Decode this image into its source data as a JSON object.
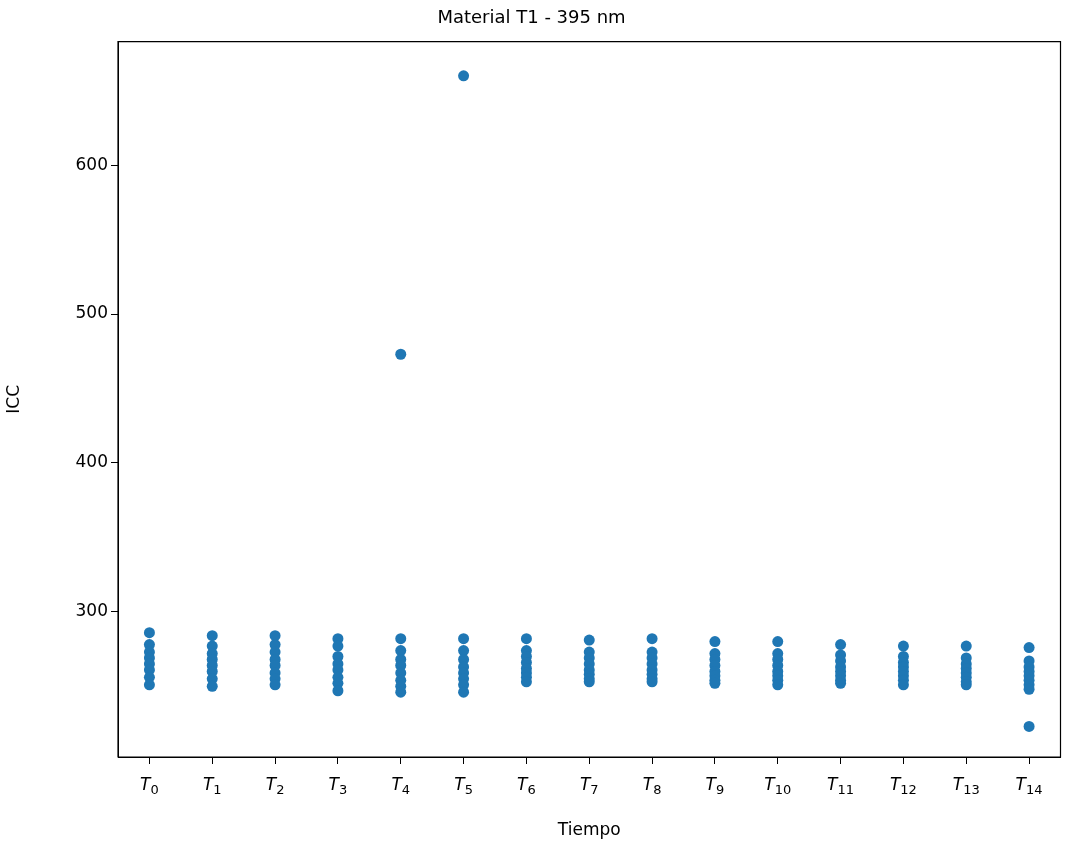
{
  "chart_data": {
    "type": "scatter",
    "title": "Material T1 - 395 nm",
    "xlabel": "Tiempo",
    "ylabel": "ICC",
    "categories": [
      "T$_{0}$",
      "T$_{1}$",
      "T$_{2}$",
      "T$_{3}$",
      "T$_{4}$",
      "T$_{5}$",
      "T$_{6}$",
      "T$_{7}$",
      "T$_{8}$",
      "T$_{9}$",
      "T$_{10}$",
      "T$_{11}$",
      "T$_{12}$",
      "T$_{13}$",
      "T$_{14}$"
    ],
    "series": [
      {
        "color": "#1f77b4",
        "x": [
          "T$_{0}$",
          "T$_{0}$",
          "T$_{0}$",
          "T$_{0}$",
          "T$_{0}$",
          "T$_{0}$",
          "T$_{0}$",
          "T$_{0}$",
          "T$_{1}$",
          "T$_{1}$",
          "T$_{1}$",
          "T$_{1}$",
          "T$_{1}$",
          "T$_{1}$",
          "T$_{1}$",
          "T$_{1}$",
          "T$_{2}$",
          "T$_{2}$",
          "T$_{2}$",
          "T$_{2}$",
          "T$_{2}$",
          "T$_{2}$",
          "T$_{2}$",
          "T$_{2}$",
          "T$_{3}$",
          "T$_{3}$",
          "T$_{3}$",
          "T$_{3}$",
          "T$_{3}$",
          "T$_{3}$",
          "T$_{3}$",
          "T$_{3}$",
          "T$_{4}$",
          "T$_{4}$",
          "T$_{4}$",
          "T$_{4}$",
          "T$_{4}$",
          "T$_{4}$",
          "T$_{4}$",
          "T$_{4}$",
          "T$_{4}$",
          "T$_{5}$",
          "T$_{5}$",
          "T$_{5}$",
          "T$_{5}$",
          "T$_{5}$",
          "T$_{5}$",
          "T$_{5}$",
          "T$_{5}$",
          "T$_{5}$",
          "T$_{6}$",
          "T$_{6}$",
          "T$_{6}$",
          "T$_{6}$",
          "T$_{6}$",
          "T$_{6}$",
          "T$_{6}$",
          "T$_{6}$",
          "T$_{7}$",
          "T$_{7}$",
          "T$_{7}$",
          "T$_{7}$",
          "T$_{7}$",
          "T$_{7}$",
          "T$_{7}$",
          "T$_{7}$",
          "T$_{8}$",
          "T$_{8}$",
          "T$_{8}$",
          "T$_{8}$",
          "T$_{8}$",
          "T$_{8}$",
          "T$_{8}$",
          "T$_{8}$",
          "T$_{9}$",
          "T$_{9}$",
          "T$_{9}$",
          "T$_{9}$",
          "T$_{9}$",
          "T$_{9}$",
          "T$_{9}$",
          "T$_{9}$",
          "T$_{10}$",
          "T$_{10}$",
          "T$_{10}$",
          "T$_{10}$",
          "T$_{10}$",
          "T$_{10}$",
          "T$_{10}$",
          "T$_{10}$",
          "T$_{11}$",
          "T$_{11}$",
          "T$_{11}$",
          "T$_{11}$",
          "T$_{11}$",
          "T$_{11}$",
          "T$_{11}$",
          "T$_{11}$",
          "T$_{12}$",
          "T$_{12}$",
          "T$_{12}$",
          "T$_{12}$",
          "T$_{12}$",
          "T$_{12}$",
          "T$_{12}$",
          "T$_{12}$",
          "T$_{13}$",
          "T$_{13}$",
          "T$_{13}$",
          "T$_{13}$",
          "T$_{13}$",
          "T$_{13}$",
          "T$_{13}$",
          "T$_{13}$",
          "T$_{14}$",
          "T$_{14}$",
          "T$_{14}$",
          "T$_{14}$",
          "T$_{14}$",
          "T$_{14}$",
          "T$_{14}$",
          "T$_{14}$",
          "T$_{14}$"
        ],
        "values": [
          286,
          278,
          273,
          269,
          265,
          261,
          256,
          251,
          284,
          277,
          272,
          268,
          264,
          260,
          255,
          250,
          284,
          278,
          273,
          268,
          264,
          259,
          255,
          251,
          282,
          277,
          270,
          265,
          261,
          256,
          252,
          247,
          282,
          274,
          268,
          264,
          259,
          254,
          250,
          246,
          473,
          282,
          274,
          268,
          263,
          259,
          255,
          251,
          246,
          660,
          282,
          274,
          270,
          266,
          262,
          259,
          256,
          253,
          281,
          273,
          269,
          265,
          261,
          258,
          255,
          253,
          282,
          273,
          269,
          265,
          261,
          258,
          255,
          253,
          280,
          272,
          268,
          264,
          260,
          257,
          254,
          252,
          280,
          272,
          268,
          264,
          260,
          257,
          254,
          251,
          278,
          271,
          267,
          263,
          260,
          257,
          254,
          252,
          277,
          270,
          266,
          263,
          260,
          257,
          254,
          251,
          277,
          269,
          265,
          262,
          259,
          256,
          253,
          251,
          276,
          267,
          263,
          260,
          257,
          254,
          251,
          248,
          223
        ]
      }
    ],
    "ylim": [
      202.5,
      683
    ],
    "yticks": [
      300,
      400,
      500,
      600
    ],
    "grid": false,
    "legend": false,
    "marker": "circle"
  }
}
